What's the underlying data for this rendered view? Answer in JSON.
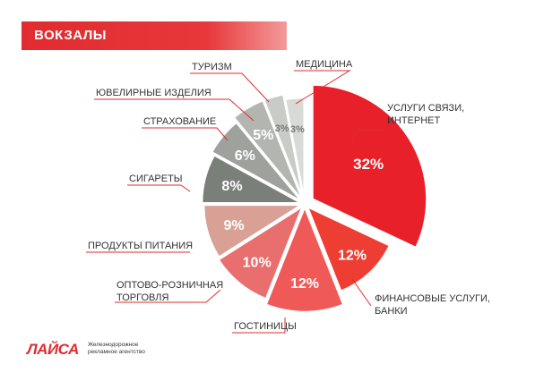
{
  "header": {
    "title": "ВОКЗАЛЫ"
  },
  "logo": {
    "mark": "ЛАЙСА",
    "line1": "Железнодорожное",
    "line2": "рекламное агентство"
  },
  "colors": {
    "accent": "#e12b2f"
  },
  "chart_data": {
    "type": "pie",
    "slices": [
      {
        "label": "УСЛУГИ СВЯЗИ, ИНТЕРНЕТ",
        "value": 32,
        "display": "32%",
        "color": "#e8202a"
      },
      {
        "label": "ФИНАНСОВЫЕ УСЛУГИ, БАНКИ",
        "value": 12,
        "display": "12%",
        "color": "#ee3e33"
      },
      {
        "label": "ГОСТИНИЦЫ",
        "value": 12,
        "display": "12%",
        "color": "#ef5a59"
      },
      {
        "label": "ОПТОВО-РОЗНИЧНАЯ ТОРГОВЛЯ",
        "value": 10,
        "display": "10%",
        "color": "#e96f6e"
      },
      {
        "label": "ПРОДУКТЫ ПИТАНИЯ",
        "value": 9,
        "display": "9%",
        "color": "#d9a095"
      },
      {
        "label": "СИГАРЕТЫ",
        "value": 8,
        "display": "8%",
        "color": "#7b7f7a"
      },
      {
        "label": "СТРАХОВАНИЕ",
        "value": 6,
        "display": "6%",
        "color": "#9ea19c"
      },
      {
        "label": "ЮВЕЛИРНЫЕ ИЗДЕЛИЯ",
        "value": 5,
        "display": "5%",
        "color": "#b3b6b0"
      },
      {
        "label": "ТУРИЗМ",
        "value": 3,
        "display": "3%",
        "color": "#c8cbc6"
      },
      {
        "label": "МЕДИЦИНА",
        "value": 3,
        "display": "3%",
        "color": "#d8dad7"
      }
    ]
  }
}
